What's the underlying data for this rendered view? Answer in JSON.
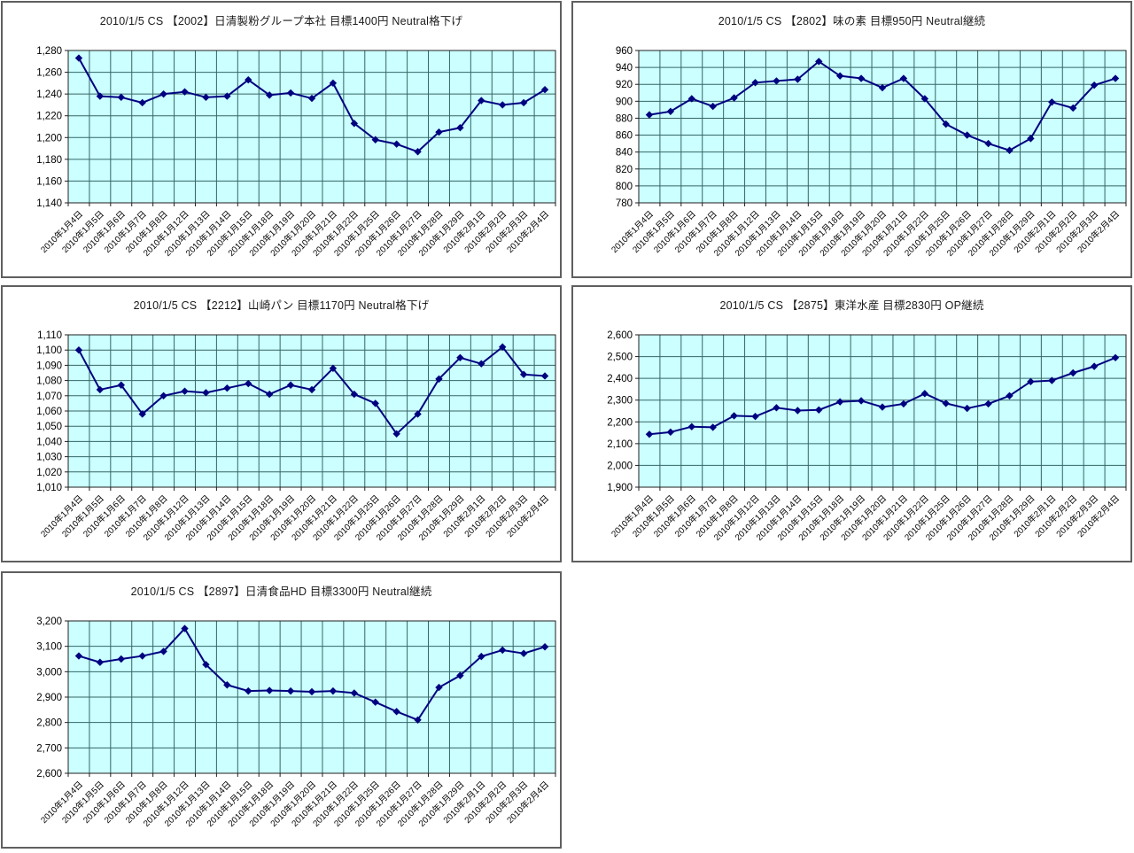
{
  "colors": {
    "plot_background": "#ccffff",
    "gridline": "#336666",
    "plot_border": "#1f1f1f",
    "series_line": "#000080",
    "marker_fill": "#000080",
    "text": "#000000",
    "panel_border": "#5f5f5f",
    "page_background": "#ffffff"
  },
  "chart_data": [
    {
      "type": "line",
      "title": "2010/1/5  CS  【2002】日清製粉グループ本社  目標1400円  Neutral格下げ",
      "security_code": "2002",
      "legend": "none",
      "grid": true,
      "marker": "diamond",
      "ylim": [
        1140,
        1280
      ],
      "ystep": 20,
      "y_ticks": [
        "1,140",
        "1,160",
        "1,180",
        "1,200",
        "1,220",
        "1,240",
        "1,260",
        "1,280"
      ],
      "categories": [
        "2010年1月4日",
        "2010年1月5日",
        "2010年1月6日",
        "2010年1月7日",
        "2010年1月8日",
        "2010年1月12日",
        "2010年1月13日",
        "2010年1月14日",
        "2010年1月15日",
        "2010年1月18日",
        "2010年1月19日",
        "2010年1月20日",
        "2010年1月21日",
        "2010年1月22日",
        "2010年1月25日",
        "2010年1月26日",
        "2010年1月27日",
        "2010年1月28日",
        "2010年1月29日",
        "2010年2月1日",
        "2010年2月2日",
        "2010年2月3日",
        "2010年2月4日"
      ],
      "values": [
        1273,
        1238,
        1237,
        1232,
        1240,
        1242,
        1237,
        1238,
        1253,
        1239,
        1241,
        1236,
        1250,
        1213,
        1198,
        1194,
        1187,
        1205,
        1209,
        1234,
        1230,
        1232,
        1244
      ]
    },
    {
      "type": "line",
      "title": "2010/1/5  CS  【2802】味の素  目標950円  Neutral継続",
      "security_code": "2802",
      "legend": "none",
      "grid": true,
      "marker": "diamond",
      "ylim": [
        780,
        960
      ],
      "ystep": 20,
      "y_ticks": [
        "780",
        "800",
        "820",
        "840",
        "860",
        "880",
        "900",
        "920",
        "940",
        "960"
      ],
      "categories": [
        "2010年1月4日",
        "2010年1月5日",
        "2010年1月6日",
        "2010年1月7日",
        "2010年1月8日",
        "2010年1月12日",
        "2010年1月13日",
        "2010年1月14日",
        "2010年1月15日",
        "2010年1月18日",
        "2010年1月19日",
        "2010年1月20日",
        "2010年1月21日",
        "2010年1月22日",
        "2010年1月25日",
        "2010年1月26日",
        "2010年1月27日",
        "2010年1月28日",
        "2010年1月29日",
        "2010年2月1日",
        "2010年2月2日",
        "2010年2月3日",
        "2010年2月4日"
      ],
      "values": [
        884,
        888,
        903,
        894,
        904,
        922,
        924,
        926,
        947,
        930,
        927,
        916,
        927,
        903,
        873,
        860,
        850,
        842,
        856,
        899,
        892,
        919,
        927
      ]
    },
    {
      "type": "line",
      "title": "2010/1/5  CS  【2212】山崎パン  目標1170円  Neutral格下げ",
      "security_code": "2212",
      "legend": "none",
      "grid": true,
      "marker": "diamond",
      "ylim": [
        1010,
        1110
      ],
      "ystep": 10,
      "y_ticks": [
        "1,010",
        "1,020",
        "1,030",
        "1,040",
        "1,050",
        "1,060",
        "1,070",
        "1,080",
        "1,090",
        "1,100",
        "1,110"
      ],
      "categories": [
        "2010年1月4日",
        "2010年1月5日",
        "2010年1月6日",
        "2010年1月7日",
        "2010年1月8日",
        "2010年1月12日",
        "2010年1月13日",
        "2010年1月14日",
        "2010年1月15日",
        "2010年1月18日",
        "2010年1月19日",
        "2010年1月20日",
        "2010年1月21日",
        "2010年1月22日",
        "2010年1月25日",
        "2010年1月26日",
        "2010年1月27日",
        "2010年1月28日",
        "2010年1月29日",
        "2010年2月1日",
        "2010年2月2日",
        "2010年2月3日",
        "2010年2月4日"
      ],
      "values": [
        1100,
        1074,
        1077,
        1058,
        1070,
        1073,
        1072,
        1075,
        1078,
        1071,
        1077,
        1074,
        1088,
        1071,
        1065,
        1045,
        1058,
        1081,
        1095,
        1091,
        1102,
        1084,
        1083
      ]
    },
    {
      "type": "line",
      "title": "2010/1/5  CS  【2875】東洋水産  目標2830円  OP継続",
      "security_code": "2875",
      "legend": "none",
      "grid": true,
      "marker": "diamond",
      "ylim": [
        1900,
        2600
      ],
      "ystep": 100,
      "y_ticks": [
        "1,900",
        "2,000",
        "2,100",
        "2,200",
        "2,300",
        "2,400",
        "2,500",
        "2,600"
      ],
      "categories": [
        "2010年1月4日",
        "2010年1月5日",
        "2010年1月6日",
        "2010年1月7日",
        "2010年1月8日",
        "2010年1月12日",
        "2010年1月13日",
        "2010年1月14日",
        "2010年1月15日",
        "2010年1月18日",
        "2010年1月19日",
        "2010年1月20日",
        "2010年1月21日",
        "2010年1月22日",
        "2010年1月25日",
        "2010年1月26日",
        "2010年1月27日",
        "2010年1月28日",
        "2010年1月29日",
        "2010年2月1日",
        "2010年2月2日",
        "2010年2月3日",
        "2010年2月4日"
      ],
      "values": [
        2143,
        2153,
        2178,
        2175,
        2228,
        2225,
        2265,
        2252,
        2255,
        2292,
        2297,
        2268,
        2283,
        2330,
        2285,
        2262,
        2283,
        2320,
        2385,
        2390,
        2425,
        2455,
        2495
      ]
    },
    {
      "type": "line",
      "title": "2010/1/5  CS  【2897】日清食品HD  目標3300円  Neutral継続",
      "security_code": "2897",
      "legend": "none",
      "grid": true,
      "marker": "diamond",
      "ylim": [
        2600,
        3200
      ],
      "ystep": 100,
      "y_ticks": [
        "2,600",
        "2,700",
        "2,800",
        "2,900",
        "3,000",
        "3,100",
        "3,200"
      ],
      "categories": [
        "2010年1月4日",
        "2010年1月5日",
        "2010年1月6日",
        "2010年1月7日",
        "2010年1月8日",
        "2010年1月12日",
        "2010年1月13日",
        "2010年1月14日",
        "2010年1月15日",
        "2010年1月18日",
        "2010年1月19日",
        "2010年1月20日",
        "2010年1月21日",
        "2010年1月22日",
        "2010年1月25日",
        "2010年1月26日",
        "2010年1月27日",
        "2010年1月28日",
        "2010年1月29日",
        "2010年2月1日",
        "2010年2月2日",
        "2010年2月3日",
        "2010年2月4日"
      ],
      "values": [
        3062,
        3037,
        3050,
        3062,
        3080,
        3170,
        3028,
        2948,
        2924,
        2926,
        2924,
        2921,
        2924,
        2916,
        2880,
        2843,
        2810,
        2938,
        2985,
        3060,
        3085,
        3072,
        3098
      ]
    }
  ]
}
